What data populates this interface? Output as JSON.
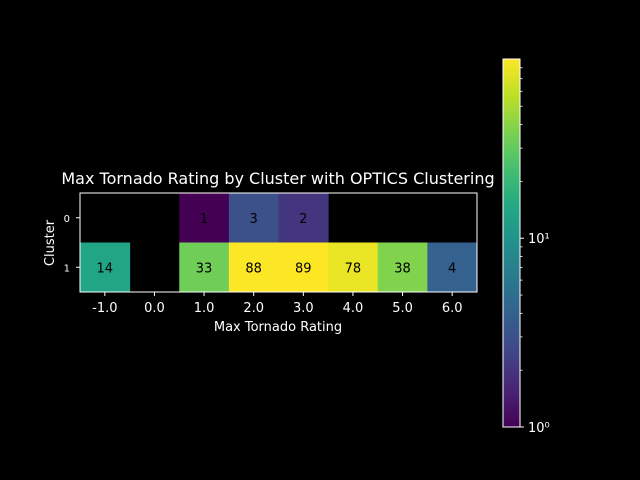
{
  "chart_data": {
    "type": "heatmap",
    "title": "Max Tornado Rating by Cluster with OPTICS Clustering",
    "xlabel": "Max Tornado Rating",
    "ylabel": "Cluster",
    "x_categories": [
      "-1.0",
      "0.0",
      "1.0",
      "2.0",
      "3.0",
      "4.0",
      "5.0",
      "6.0"
    ],
    "y_categories": [
      "0",
      "1"
    ],
    "values": [
      [
        null,
        null,
        1,
        3,
        2,
        null,
        null,
        null
      ],
      [
        14,
        null,
        33,
        88,
        89,
        78,
        38,
        4
      ]
    ],
    "colorbar": {
      "scale": "log",
      "colormap": "viridis",
      "range": [
        1,
        89
      ],
      "tick_labels": [
        {
          "value": 1,
          "label": "10⁰"
        },
        {
          "value": 10,
          "label": "10¹"
        }
      ]
    },
    "colors": {
      "background": "#000000",
      "text": "#ffffff",
      "cell_text": "#000000",
      "axes_edge": "#ffffff"
    }
  }
}
